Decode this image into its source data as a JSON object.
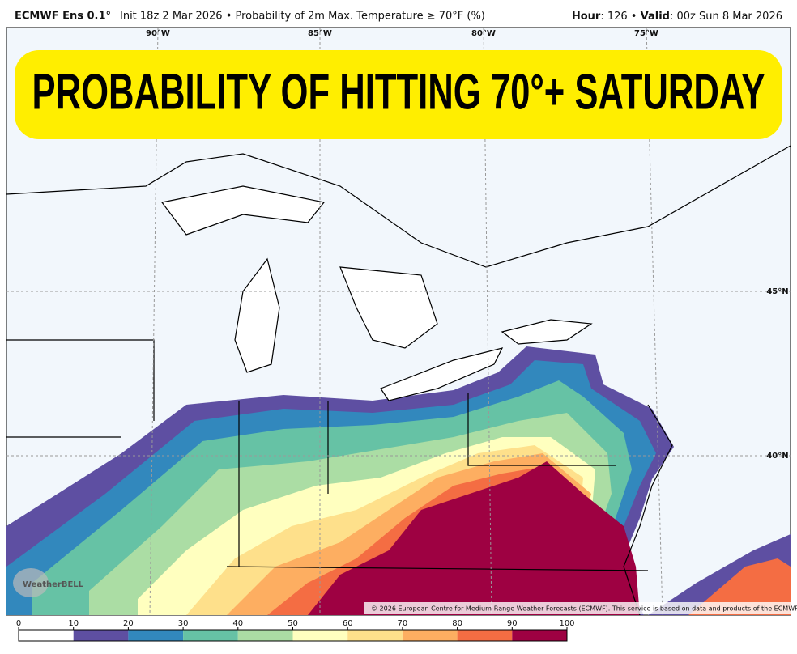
{
  "header": {
    "model": "ECMWF Ens 0.1°",
    "info": "Init 18z 2 Mar 2026 • Probability of 2m Max. Temperature ≥ 70°F (%)",
    "hour_label": "Hour",
    "hour_value": ": 126 •",
    "valid_label": "Valid",
    "valid_value": ": 00z Sun 8 Mar 2026"
  },
  "banner": "PROBABILITY OF HITTING 70°+ SATURDAY",
  "map": {
    "lon_labels": [
      "90°W",
      "85°W",
      "80°W",
      "75°W"
    ],
    "lat_labels": [
      "45°N",
      "40°N"
    ],
    "copyright": "© 2026 European Centre for Medium-Range Weather Forecasts (ECMWF). This service is based on data and products of the ECMWF.",
    "logo": "WeatherBELL"
  },
  "colorbar": {
    "ticks": [
      0,
      10,
      20,
      30,
      40,
      50,
      60,
      70,
      80,
      90,
      100
    ],
    "colors": [
      "#ffffff",
      "#5e4fa2",
      "#3288bd",
      "#66c2a5",
      "#abdda4",
      "#ffffbf",
      "#fee08b",
      "#fdae61",
      "#f46d43",
      "#9e0142"
    ]
  }
}
